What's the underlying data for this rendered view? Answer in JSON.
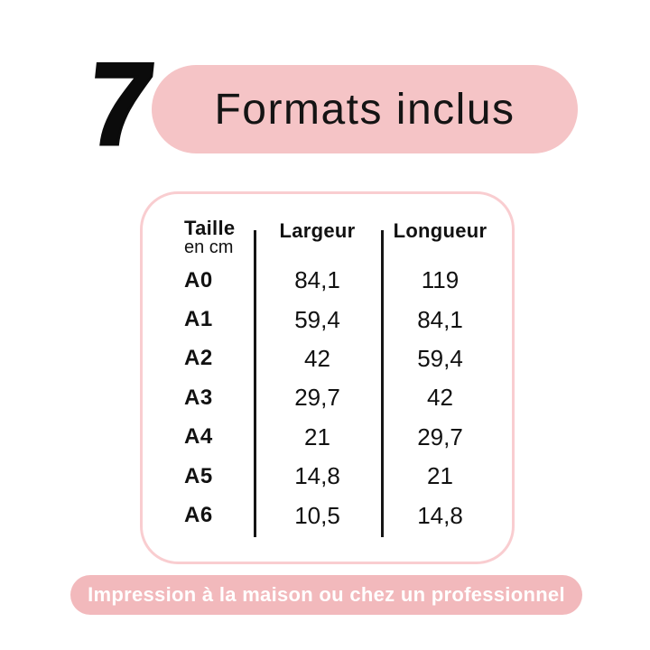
{
  "colors": {
    "pill": "#f5c4c6",
    "table_border": "#f9cdd0",
    "banner": "#f2b9bc",
    "text": "#111111",
    "banner_text": "#ffffff"
  },
  "header": {
    "count": "7",
    "title": "Formats inclus"
  },
  "chart_data": {
    "type": "table",
    "title": "Formats inclus",
    "count_badge": "7",
    "columns": [
      {
        "label": "Taille",
        "sublabel": "en cm"
      },
      {
        "label": "Largeur",
        "sublabel": ""
      },
      {
        "label": "Longueur",
        "sublabel": ""
      }
    ],
    "rows": [
      {
        "size": "A0",
        "largeur": "84,1",
        "longueur": "119"
      },
      {
        "size": "A1",
        "largeur": "59,4",
        "longueur": "84,1"
      },
      {
        "size": "A2",
        "largeur": "42",
        "longueur": "59,4"
      },
      {
        "size": "A3",
        "largeur": "29,7",
        "longueur": "42"
      },
      {
        "size": "A4",
        "largeur": "21",
        "longueur": "29,7"
      },
      {
        "size": "A5",
        "largeur": "14,8",
        "longueur": "21"
      },
      {
        "size": "A6",
        "largeur": "10,5",
        "longueur": "14,8"
      }
    ],
    "units": "cm",
    "footnote": "Impression à la maison ou chez un professionnel"
  },
  "footer": {
    "banner_text": "Impression à la maison ou chez un professionnel"
  }
}
